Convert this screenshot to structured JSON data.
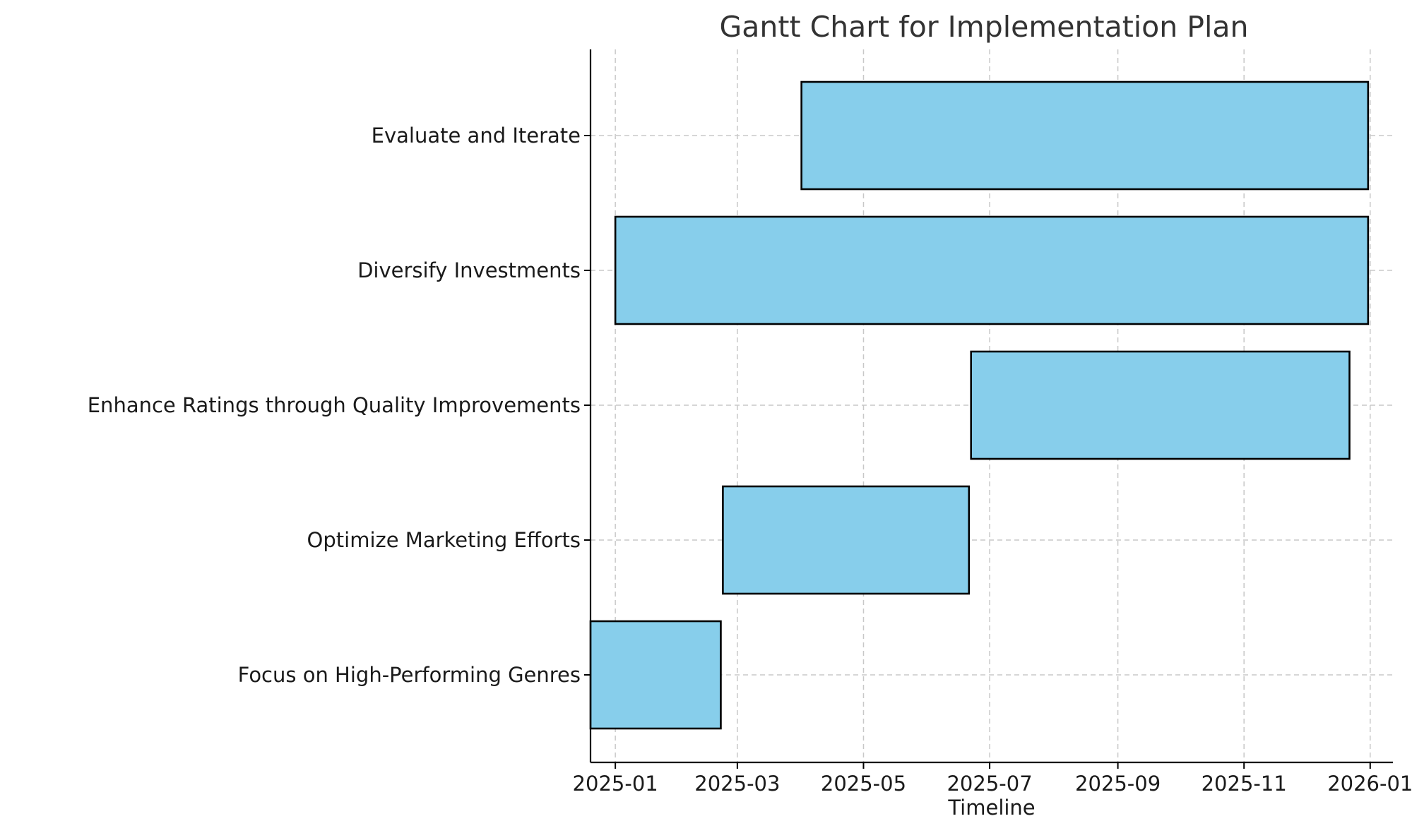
{
  "chart_data": {
    "type": "gantt",
    "title": "Gantt Chart for Implementation Plan",
    "xlabel": "Timeline",
    "ylabel": "",
    "xlim": [
      "2024-12-20",
      "2026-01-12"
    ],
    "x_ticks": [
      "2025-01",
      "2025-03",
      "2025-05",
      "2025-07",
      "2025-09",
      "2025-11",
      "2026-01"
    ],
    "grid": true,
    "bar_color": "#87ceeb",
    "edge_color": "#000000",
    "tasks": [
      {
        "name": "Focus on High-Performing Genres",
        "start": "2024-12-20",
        "end": "2025-02-21"
      },
      {
        "name": "Optimize Marketing Efforts",
        "start": "2025-02-22",
        "end": "2025-06-21"
      },
      {
        "name": "Enhance Ratings through Quality Improvements",
        "start": "2025-06-22",
        "end": "2025-12-22"
      },
      {
        "name": "Diversify Investments",
        "start": "2025-01-01",
        "end": "2025-12-31"
      },
      {
        "name": "Evaluate and Iterate",
        "start": "2025-04-01",
        "end": "2025-12-31"
      }
    ]
  }
}
